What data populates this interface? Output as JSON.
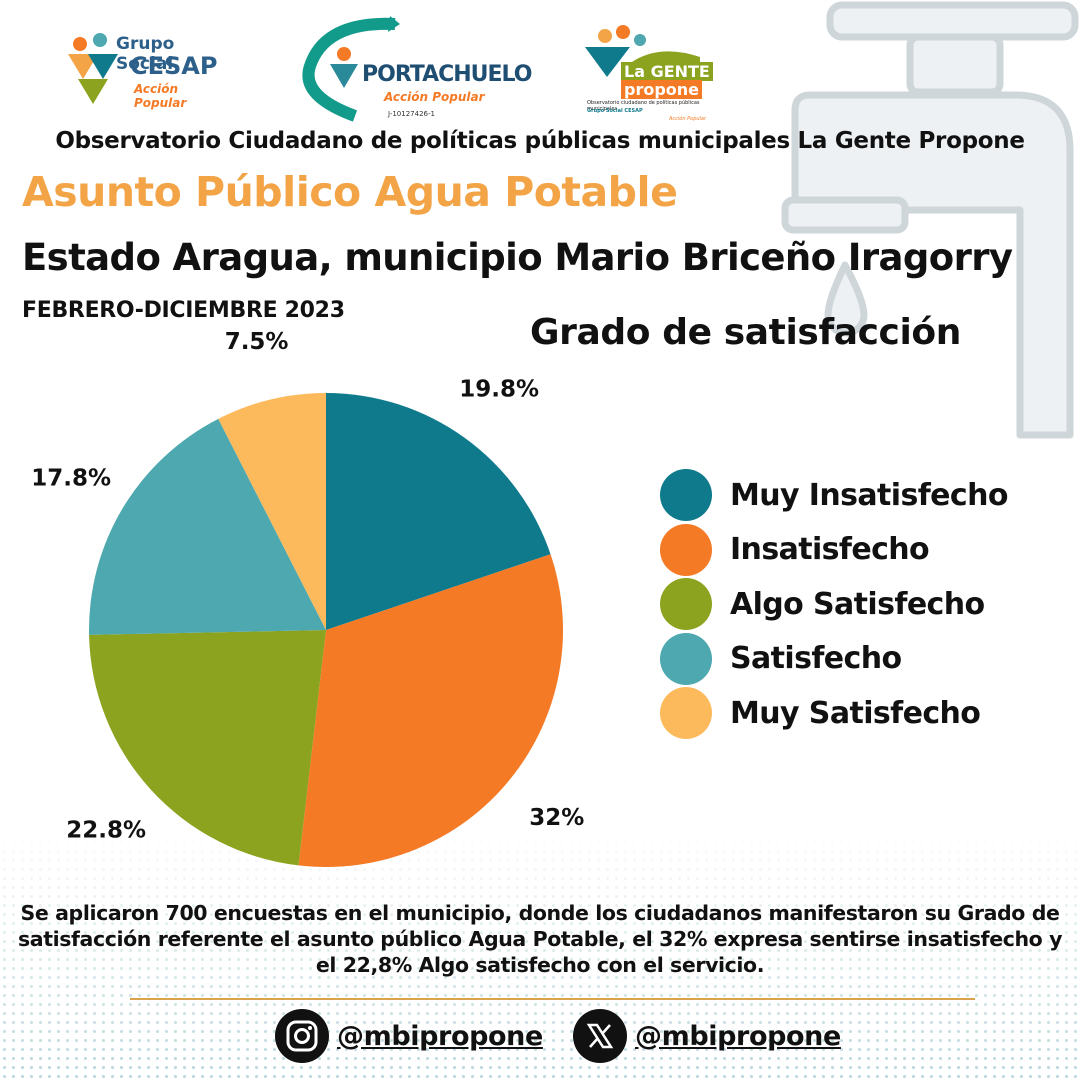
{
  "logos": {
    "cesap": {
      "line1": "Grupo Social",
      "line2": "CESAP",
      "line3": "Acción Popular"
    },
    "portachuelo": {
      "name": "PORTACHUELO",
      "tagline": "Acción Popular",
      "rif": "J-10127426-1"
    },
    "lagente": {
      "line1": "La GENTE",
      "line2": "propone",
      "line3": "Observatorio ciudadano de políticas públicas municipales",
      "line4": "Grupo Social CESAP",
      "line5": "Acción Popular"
    }
  },
  "header": {
    "observatory": "Observatorio Ciudadano de políticas públicas municipales La Gente Propone",
    "title": "Asunto Público Agua Potable",
    "subtitle": "Estado Aragua, municipio Mario Briceño Iragorry",
    "period": "FEBRERO-DICIEMBRE 2023"
  },
  "chart_data": {
    "type": "pie",
    "title": "Grado de satisfacción",
    "start_angle_deg": 0,
    "direction": "clockwise",
    "legend_position": "right",
    "slices": [
      {
        "name": "Muy Insatisfecho",
        "value": 19.8,
        "label": "19.8%",
        "color": "#0F7A8C"
      },
      {
        "name": "Insatisfecho",
        "value": 32,
        "label": "32%",
        "color": "#F47A25"
      },
      {
        "name": "Algo Satisfecho",
        "value": 22.8,
        "label": "22.8%",
        "color": "#8BA31F"
      },
      {
        "name": "Satisfecho",
        "value": 17.8,
        "label": "17.8%",
        "color": "#4EA8B0"
      },
      {
        "name": "Muy Satisfecho",
        "value": 7.5,
        "label": "7.5%",
        "color": "#FDBA5C"
      }
    ]
  },
  "footnote": "Se aplicaron 700 encuestas en el municipio, donde los ciudadanos manifestaron su Grado de satisfacción referente el asunto público Agua Potable, el 32% expresa sentirse insatisfecho y el 22,8% Algo satisfecho con el servicio.",
  "social": {
    "instagram": {
      "handle": "@mbipropone",
      "icon": "instagram-icon"
    },
    "x": {
      "handle": "@mbipropone",
      "icon": "x-icon"
    }
  }
}
